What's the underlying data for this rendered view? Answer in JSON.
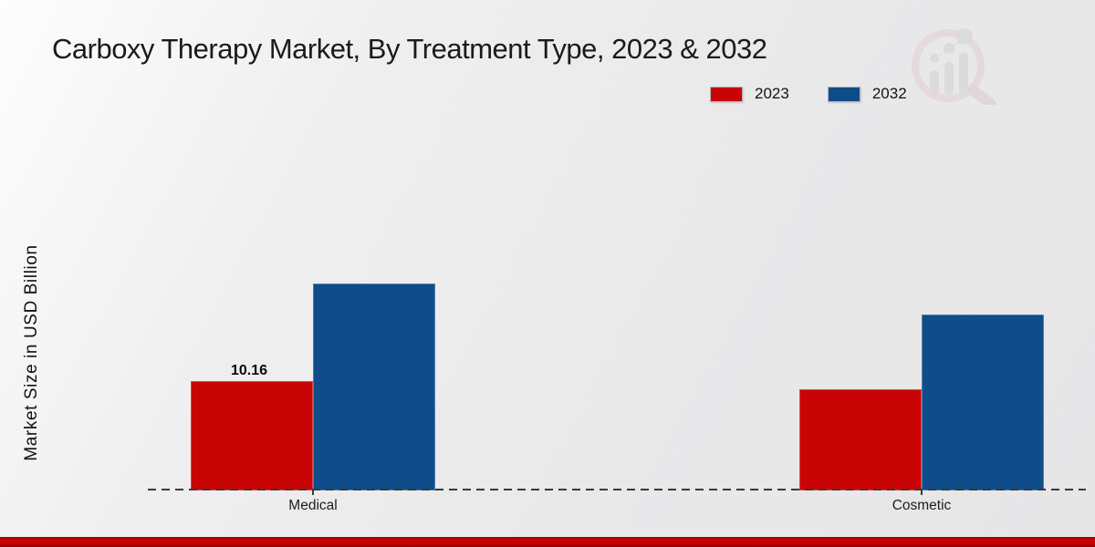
{
  "title": "Carboxy Therapy Market, By Treatment Type, 2023 & 2032",
  "y_axis_label": "Market Size in USD Billion",
  "legend": {
    "items": [
      {
        "label": "2023",
        "color": "#c90404"
      },
      {
        "label": "2032",
        "color": "#0f4d8a"
      }
    ]
  },
  "watermark_icon": "magnifier-bar-chart-logo",
  "colors": {
    "series_2023": "#c90404",
    "series_2032": "#0f4d8a",
    "footer_band": "#c40202",
    "axis": "#3a3a3a",
    "background": "#e9e9ea"
  },
  "chart_data": {
    "type": "bar",
    "categories": [
      "Medical",
      "Cosmetic"
    ],
    "series": [
      {
        "name": "2023",
        "color": "#c90404",
        "values": [
          10.16,
          9.4
        ]
      },
      {
        "name": "2032",
        "color": "#0f4d8a",
        "values": [
          19.2,
          16.3
        ]
      }
    ],
    "value_labels": [
      [
        "10.16",
        null
      ],
      [
        null,
        null
      ]
    ],
    "title": "Carboxy Therapy Market, By Treatment Type, 2023 & 2032",
    "xlabel": "",
    "ylabel": "Market Size in USD Billion",
    "ylim": [
      0,
      22
    ],
    "grid": false,
    "legend_position": "top-right",
    "baseline_style": "dashed"
  }
}
